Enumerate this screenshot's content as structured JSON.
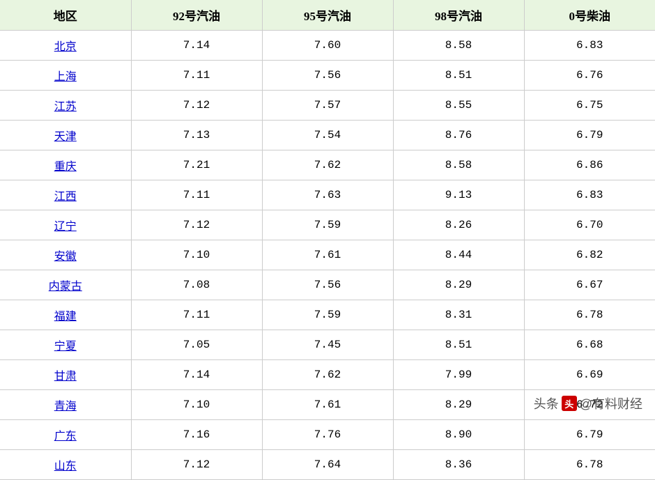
{
  "table": {
    "columns": [
      "地区",
      "92号汽油",
      "95号汽油",
      "98号汽油",
      "0号柴油"
    ],
    "column_widths": [
      "20%",
      "20%",
      "20%",
      "20%",
      "20%"
    ],
    "header_bg": "#e8f5e0",
    "header_fontsize": 17,
    "cell_fontsize": 16,
    "border_color": "#cccccc",
    "link_color": "#0000cc",
    "rows": [
      {
        "region": "北京",
        "g92": "7.14",
        "g95": "7.60",
        "g98": "8.58",
        "d0": "6.83"
      },
      {
        "region": "上海",
        "g92": "7.11",
        "g95": "7.56",
        "g98": "8.51",
        "d0": "6.76"
      },
      {
        "region": "江苏",
        "g92": "7.12",
        "g95": "7.57",
        "g98": "8.55",
        "d0": "6.75"
      },
      {
        "region": "天津",
        "g92": "7.13",
        "g95": "7.54",
        "g98": "8.76",
        "d0": "6.79"
      },
      {
        "region": "重庆",
        "g92": "7.21",
        "g95": "7.62",
        "g98": "8.58",
        "d0": "6.86"
      },
      {
        "region": "江西",
        "g92": "7.11",
        "g95": "7.63",
        "g98": "9.13",
        "d0": "6.83"
      },
      {
        "region": "辽宁",
        "g92": "7.12",
        "g95": "7.59",
        "g98": "8.26",
        "d0": "6.70"
      },
      {
        "region": "安徽",
        "g92": "7.10",
        "g95": "7.61",
        "g98": "8.44",
        "d0": "6.82"
      },
      {
        "region": "内蒙古",
        "g92": "7.08",
        "g95": "7.56",
        "g98": "8.29",
        "d0": "6.67"
      },
      {
        "region": "福建",
        "g92": "7.11",
        "g95": "7.59",
        "g98": "8.31",
        "d0": "6.78"
      },
      {
        "region": "宁夏",
        "g92": "7.05",
        "g95": "7.45",
        "g98": "8.51",
        "d0": "6.68"
      },
      {
        "region": "甘肃",
        "g92": "7.14",
        "g95": "7.62",
        "g98": "7.99",
        "d0": "6.69"
      },
      {
        "region": "青海",
        "g92": "7.10",
        "g95": "7.61",
        "g98": "8.29",
        "d0": "6.72"
      },
      {
        "region": "广东",
        "g92": "7.16",
        "g95": "7.76",
        "g98": "8.90",
        "d0": "6.79"
      },
      {
        "region": "山东",
        "g92": "7.12",
        "g95": "7.64",
        "g98": "8.36",
        "d0": "6.78"
      }
    ]
  },
  "watermark": {
    "prefix": "头条",
    "handle": "@有料财经",
    "icon_bg": "#cc0000",
    "text_color": "#555555"
  }
}
